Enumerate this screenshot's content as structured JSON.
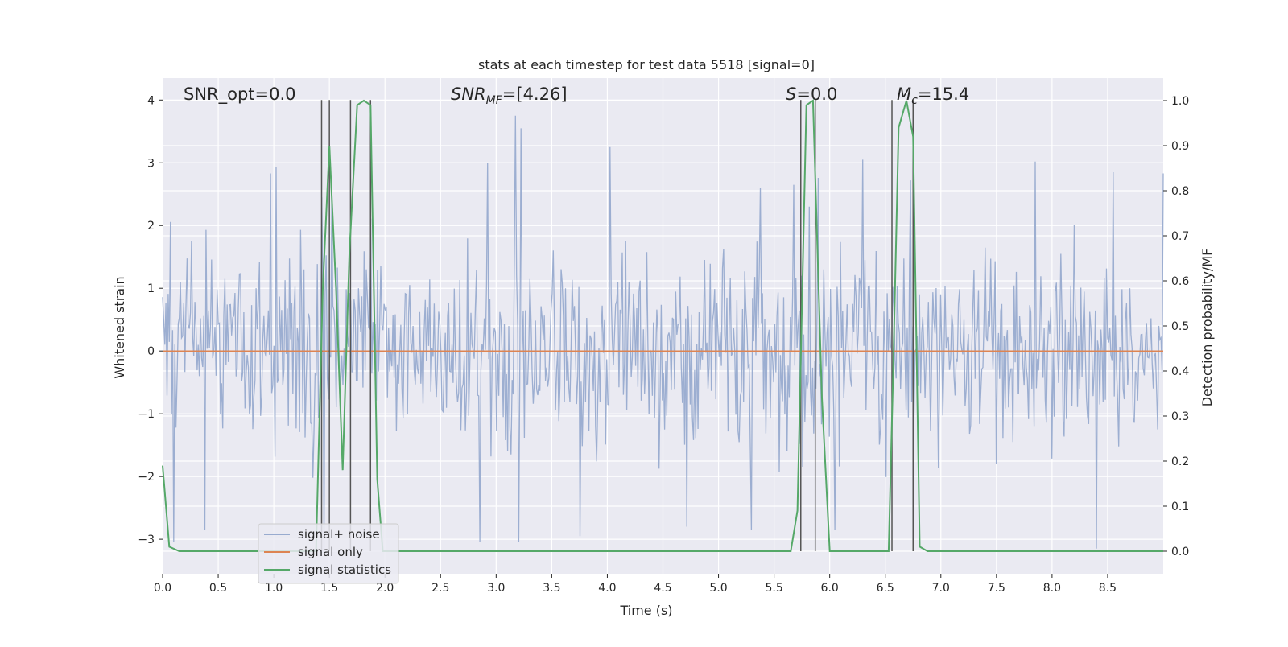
{
  "chart_data": {
    "type": "line",
    "title": "stats at each timestep for test data 5518 [signal=0]",
    "xlabel": "Time (s)",
    "ylabel": "Whitened strain",
    "y2label": "Detection probability/MF",
    "xlim": [
      0.0,
      9.0
    ],
    "ylim": [
      -3.55,
      4.35
    ],
    "y2lim": [
      -0.05,
      1.05
    ],
    "x_ticks": [
      "0.0",
      "0.5",
      "1.0",
      "1.5",
      "2.0",
      "2.5",
      "3.0",
      "3.5",
      "4.0",
      "4.5",
      "5.0",
      "5.5",
      "6.0",
      "6.5",
      "7.0",
      "7.5",
      "8.0",
      "8.5"
    ],
    "y_ticks": [
      "4",
      "3",
      "2",
      "1",
      "0",
      "−1",
      "−2",
      "−3"
    ],
    "y2_ticks": [
      "1.0",
      "0.9",
      "0.8",
      "0.7",
      "0.6",
      "0.5",
      "0.4",
      "0.3",
      "0.2",
      "0.1",
      "0.0"
    ],
    "grid": true,
    "legend_position": "lower-left",
    "annotations": {
      "snr_opt": "SNR_opt=0.0",
      "snr_mf_main": "SNR",
      "snr_mf_sub": "MF",
      "snr_mf_val": "=[4.26]",
      "s_main": "S",
      "s_val": "=0.0",
      "mc_main": "M",
      "mc_sub": "c",
      "mc_val": "=15.4"
    },
    "colors": {
      "background": "#eaeaf2",
      "noise": "#98abcf",
      "signal": "#dd8452",
      "stats": "#55a868",
      "vlines": "#555555",
      "grid": "#ffffff"
    },
    "series": [
      {
        "name": "signal+ noise",
        "axis": "left",
        "description_values": "dense noise, amplitude approx ±1.5 with spikes to ±3.8",
        "sample_count": 900,
        "spikes": [
          [
            0.97,
            2.83
          ],
          [
            1.02,
            2.93
          ],
          [
            1.43,
            2.45
          ],
          [
            1.52,
            2.6
          ],
          [
            2.92,
            3.0
          ],
          [
            3.17,
            3.75
          ],
          [
            3.22,
            3.55
          ],
          [
            4.02,
            3.25
          ],
          [
            5.38,
            2.6
          ],
          [
            5.68,
            2.65
          ],
          [
            5.9,
            2.76
          ],
          [
            6.3,
            3.05
          ],
          [
            6.73,
            2.72
          ],
          [
            7.85,
            3.02
          ],
          [
            8.55,
            2.85
          ],
          [
            9.0,
            2.83
          ],
          [
            0.1,
            -3.05
          ],
          [
            0.38,
            -2.85
          ],
          [
            1.45,
            -3.2
          ],
          [
            2.85,
            -3.05
          ],
          [
            3.2,
            -3.05
          ],
          [
            3.75,
            -2.95
          ],
          [
            4.72,
            -2.8
          ],
          [
            5.3,
            -2.85
          ],
          [
            6.05,
            -2.85
          ],
          [
            8.4,
            -3.15
          ]
        ]
      },
      {
        "name": "signal only",
        "axis": "left",
        "x": [
          0.0,
          9.0
        ],
        "y": [
          0.0,
          0.0
        ]
      },
      {
        "name": "signal statistics",
        "axis": "right",
        "x": [
          0.0,
          0.06,
          0.15,
          1.38,
          1.44,
          1.5,
          1.56,
          1.62,
          1.68,
          1.75,
          1.81,
          1.87,
          1.93,
          1.98,
          5.65,
          5.71,
          5.79,
          5.85,
          5.93,
          6.0,
          6.53,
          6.57,
          6.62,
          6.69,
          6.75,
          6.81,
          6.88,
          9.0
        ],
        "y": [
          0.19,
          0.01,
          0.0,
          0.0,
          0.58,
          0.9,
          0.58,
          0.18,
          0.66,
          0.99,
          1.0,
          0.99,
          0.16,
          0.0,
          0.0,
          0.09,
          0.99,
          1.0,
          0.34,
          0.0,
          0.0,
          0.39,
          0.94,
          1.0,
          0.92,
          0.01,
          0.0,
          0.0
        ]
      }
    ],
    "vertical_lines_x": [
      1.43,
      1.5,
      1.69,
      1.87,
      5.74,
      5.87,
      6.56,
      6.75
    ],
    "legend": [
      "signal+ noise",
      "signal only",
      "signal statistics"
    ]
  }
}
